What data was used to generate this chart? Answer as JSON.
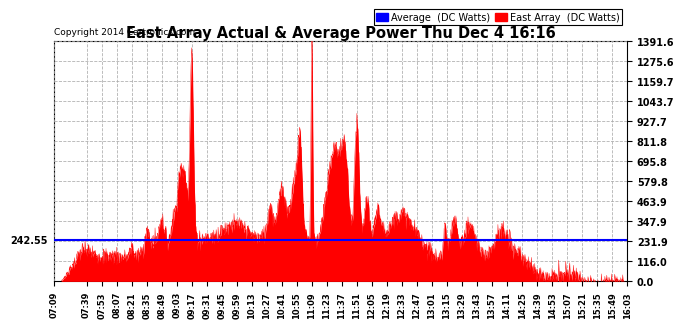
{
  "title": "East Array Actual & Average Power Thu Dec 4 16:16",
  "copyright": "Copyright 2014 Cartronics.com",
  "legend_avg": "Average  (DC Watts)",
  "legend_east": "East Array  (DC Watts)",
  "avg_value": 242.55,
  "ymax": 1391.6,
  "yticks": [
    0.0,
    116.0,
    231.9,
    347.9,
    463.9,
    579.8,
    695.8,
    811.8,
    927.7,
    1043.7,
    1159.7,
    1275.6,
    1391.6
  ],
  "ytick_labels": [
    "0.0",
    "116.0",
    "231.9",
    "347.9",
    "463.9",
    "579.8",
    "695.8",
    "811.8",
    "927.7",
    "1043.7",
    "1159.7",
    "1275.6",
    "1391.6"
  ],
  "bg_color": "#ffffff",
  "plot_bg_color": "#ffffff",
  "grid_color": "#aaaaaa",
  "fill_color": "#ff0000",
  "avg_line_color": "#0000ff",
  "title_color": "#000000",
  "copyright_color": "#000000",
  "xtick_labels": [
    "07:09",
    "07:39",
    "07:53",
    "08:07",
    "08:21",
    "08:35",
    "08:49",
    "09:03",
    "09:17",
    "09:31",
    "09:45",
    "09:59",
    "10:13",
    "10:27",
    "10:41",
    "10:55",
    "11:09",
    "11:23",
    "11:37",
    "11:51",
    "12:05",
    "12:19",
    "12:33",
    "12:47",
    "13:01",
    "13:15",
    "13:29",
    "13:43",
    "13:57",
    "14:11",
    "14:25",
    "14:39",
    "14:53",
    "15:07",
    "15:21",
    "15:35",
    "15:49",
    "16:03"
  ]
}
